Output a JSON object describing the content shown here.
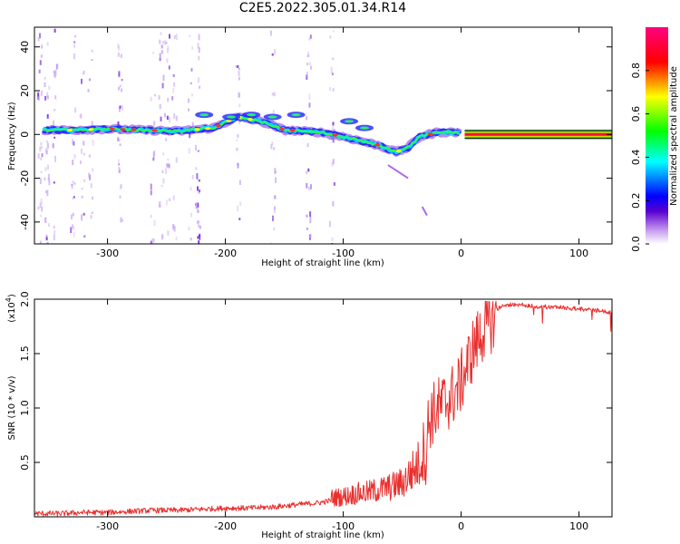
{
  "title": "C2E5.2022.305.01.34.R14",
  "chart_data": [
    {
      "type": "heatmap",
      "xlabel": "Height of straight line (km)",
      "ylabel": "Frequency (Hz)",
      "xlim": [
        -362,
        128
      ],
      "ylim": [
        -50,
        49
      ],
      "x_ticks": [
        -300,
        -200,
        -100,
        0,
        100
      ],
      "y_ticks": [
        -40,
        -20,
        0,
        20,
        40
      ],
      "colorbar": {
        "label": "Normalized spectral amplitude",
        "range": [
          0.0,
          1.0
        ],
        "ticks": [
          0.0,
          0.2,
          0.4,
          0.6,
          0.8
        ],
        "colors": [
          "#ffffff",
          "#8a2be2",
          "#0000ff",
          "#00ffff",
          "#00ff00",
          "#ffff00",
          "#ff0000",
          "#ff0080"
        ]
      },
      "ridge": [
        {
          "x": -355,
          "f": 2
        },
        {
          "x": -330,
          "f": 2
        },
        {
          "x": -300,
          "f": 2.5
        },
        {
          "x": -270,
          "f": 2
        },
        {
          "x": -240,
          "f": 1.5
        },
        {
          "x": -210,
          "f": 3
        },
        {
          "x": -190,
          "f": 8
        },
        {
          "x": -170,
          "f": 6
        },
        {
          "x": -150,
          "f": 2
        },
        {
          "x": -120,
          "f": 1
        },
        {
          "x": -100,
          "f": -1
        },
        {
          "x": -85,
          "f": -3
        },
        {
          "x": -70,
          "f": -5
        },
        {
          "x": -55,
          "f": -8
        },
        {
          "x": -45,
          "f": -6
        },
        {
          "x": -35,
          "f": -1
        },
        {
          "x": -20,
          "f": 1
        },
        {
          "x": -5,
          "f": 1
        },
        {
          "x": 0,
          "f": 0.5
        }
      ],
      "carrier": {
        "x_start": 3,
        "x_end": 128,
        "f": 0
      }
    },
    {
      "type": "line",
      "xlabel": "Height of straight line (km)",
      "ylabel": "SNR (10 * v/v)",
      "y_multiplier": "(x10",
      "y_multiplier_exp": "4",
      "xlim": [
        -362,
        128
      ],
      "ylim": [
        0,
        2.0
      ],
      "x_ticks": [
        -300,
        -200,
        -100,
        0,
        100
      ],
      "y_ticks": [
        0.5,
        1.0,
        1.5,
        2.0
      ],
      "series": [
        {
          "color": "#e8302f",
          "x": [
            -360,
            -340,
            -320,
            -300,
            -280,
            -260,
            -240,
            -220,
            -200,
            -180,
            -160,
            -140,
            -120,
            -110,
            -100,
            -90,
            -80,
            -70,
            -60,
            -50,
            -45,
            -40,
            -35,
            -30,
            -28,
            -25,
            -20,
            -15,
            -10,
            -5,
            0,
            5,
            10,
            15,
            20,
            25,
            30,
            35,
            40,
            50,
            60,
            70,
            80,
            90,
            100,
            110,
            120,
            128
          ],
          "y": [
            0.02,
            0.02,
            0.03,
            0.03,
            0.04,
            0.05,
            0.05,
            0.06,
            0.07,
            0.07,
            0.08,
            0.1,
            0.12,
            0.14,
            0.15,
            0.17,
            0.18,
            0.2,
            0.22,
            0.25,
            0.3,
            0.35,
            0.4,
            0.55,
            0.9,
            1.0,
            1.05,
            1.1,
            1.15,
            1.2,
            1.3,
            1.45,
            1.6,
            1.7,
            1.8,
            1.85,
            1.92,
            1.96,
            1.97,
            1.97,
            1.96,
            1.95,
            1.95,
            1.94,
            1.93,
            1.92,
            1.91,
            1.9
          ]
        }
      ]
    }
  ]
}
